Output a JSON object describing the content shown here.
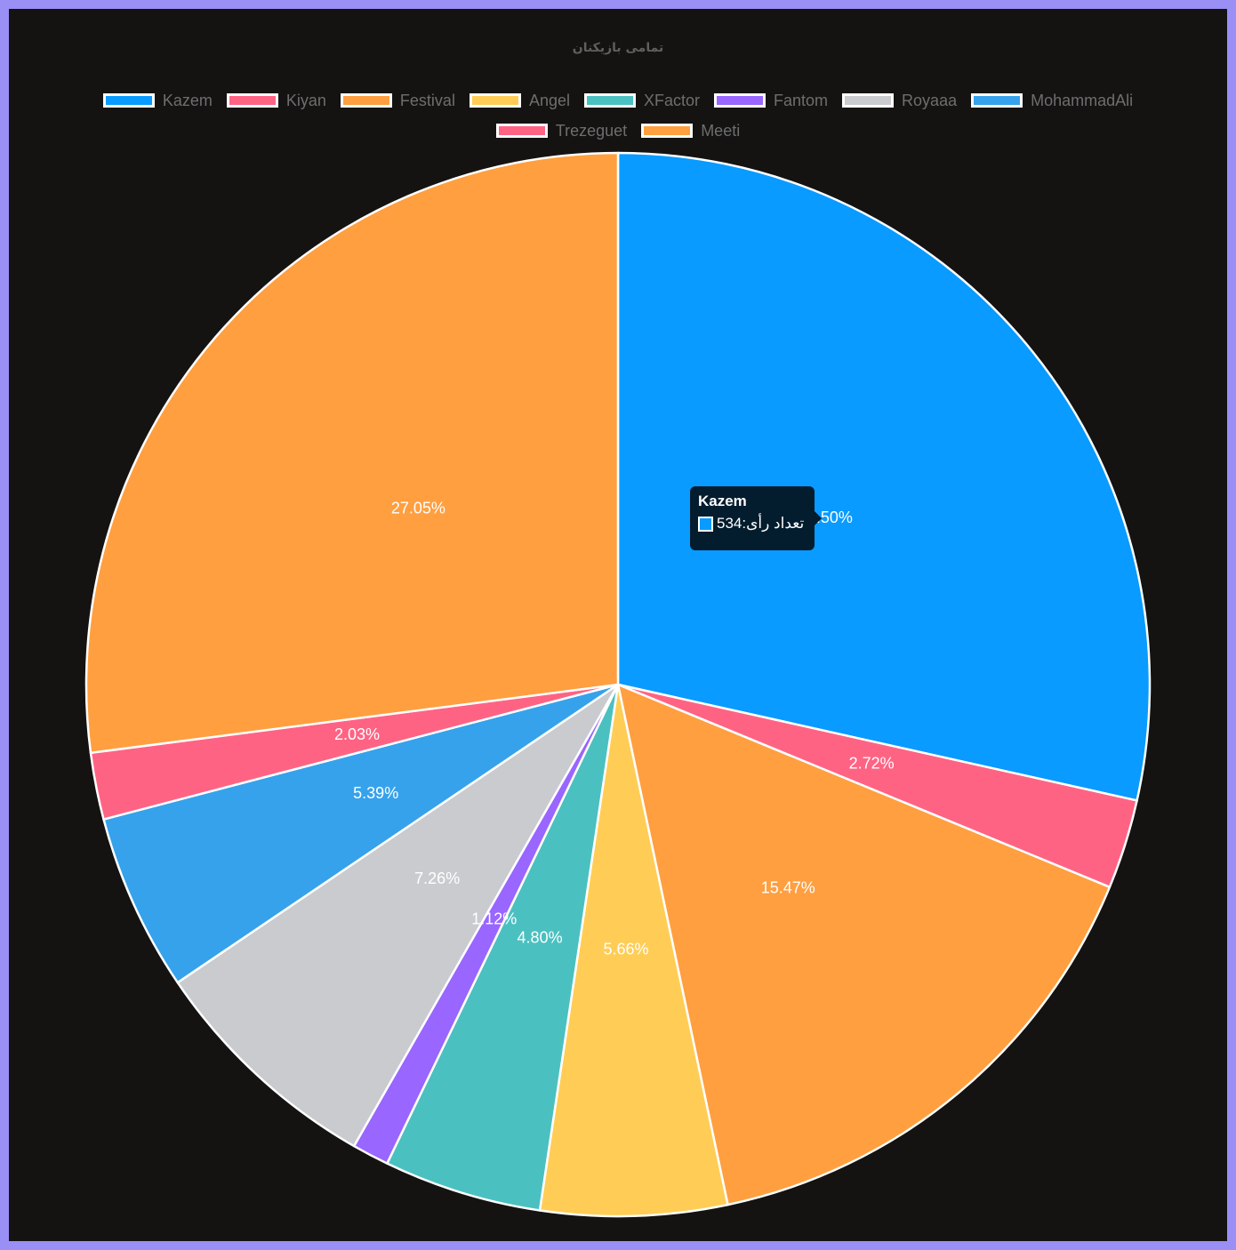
{
  "chart_data": {
    "type": "pie",
    "title": "تمامی بازیکنان",
    "categories": [
      "Kazem",
      "Kiyan",
      "Festival",
      "Angel",
      "XFactor",
      "Fantom",
      "Royaaa",
      "MohammadAli",
      "Trezeguet",
      "Meeti"
    ],
    "values": [
      28.5,
      2.72,
      15.47,
      5.66,
      4.8,
      1.12,
      7.26,
      5.39,
      2.03,
      27.05
    ],
    "labels": [
      "28.50%",
      "2.72%",
      "15.47%",
      "5.66%",
      "4.80%",
      "1.12%",
      "7.26%",
      "5.39%",
      "2.03%",
      "27.05%"
    ],
    "colors": [
      "#099bff",
      "#ff6384",
      "#ff9f40",
      "#ffcd56",
      "#4bc0c0",
      "#9966ff",
      "#c9cbcf",
      "#36a2eb",
      "#ff6384",
      "#ff9f40"
    ],
    "legend_position": "top",
    "slice_border_color": "#ffffff"
  },
  "tooltip": {
    "title": "Kazem",
    "label": "تعداد رأی: ",
    "value": "534",
    "color": "#099bff"
  },
  "page": {
    "background": "#141312",
    "frame_color": "#9a8ff5"
  }
}
